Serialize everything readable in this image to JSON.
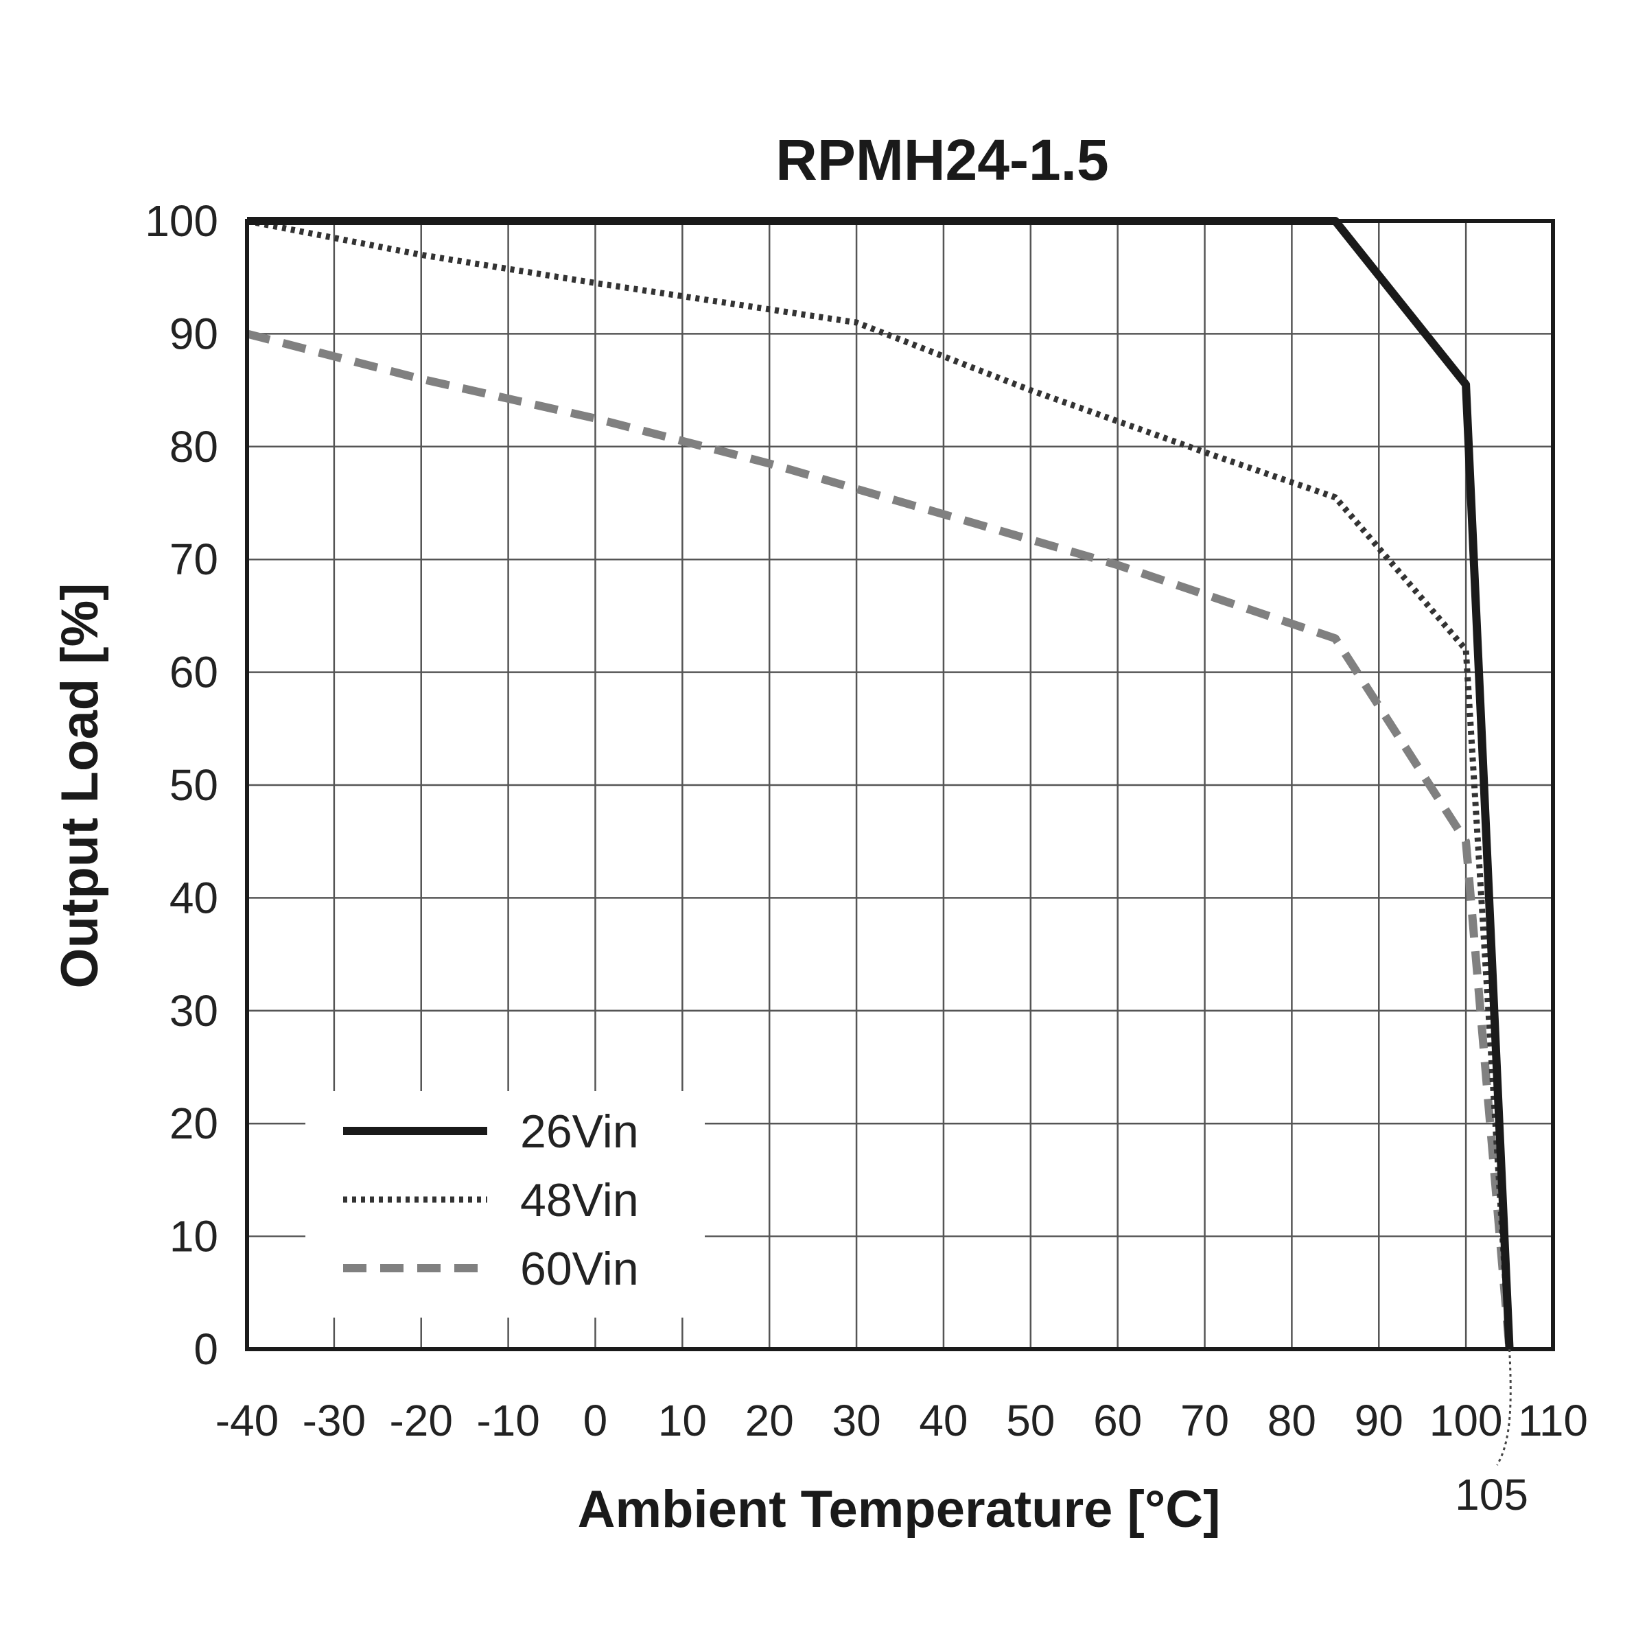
{
  "chart_data": {
    "type": "line",
    "title": "RPMH24-1.5",
    "xlabel": "Ambient Temperature [°C]",
    "ylabel": "Output Load [%]",
    "xlim": [
      -40,
      110
    ],
    "ylim": [
      0,
      100
    ],
    "x_ticks": [
      -40,
      -30,
      -20,
      -10,
      0,
      10,
      20,
      30,
      40,
      50,
      60,
      70,
      80,
      90,
      100,
      110
    ],
    "y_ticks": [
      0,
      10,
      20,
      30,
      40,
      50,
      60,
      70,
      80,
      90,
      100
    ],
    "grid": true,
    "legend_position": "bottom-left",
    "series": [
      {
        "name": "26Vin",
        "style": "solid",
        "color": "#1a1a1a",
        "points": [
          [
            -40,
            100
          ],
          [
            85,
            100
          ],
          [
            100,
            85.5
          ],
          [
            105,
            0
          ]
        ]
      },
      {
        "name": "48Vin",
        "style": "dotted",
        "color": "#333333",
        "points": [
          [
            -40,
            100
          ],
          [
            -20,
            97
          ],
          [
            0,
            94.5
          ],
          [
            30,
            91
          ],
          [
            50,
            85
          ],
          [
            70,
            79.5
          ],
          [
            85,
            75.5
          ],
          [
            100,
            62
          ],
          [
            105,
            0
          ]
        ]
      },
      {
        "name": "60Vin",
        "style": "dashed",
        "color": "#808080",
        "points": [
          [
            -40,
            90
          ],
          [
            -20,
            86
          ],
          [
            0,
            82.5
          ],
          [
            20,
            78.5
          ],
          [
            40,
            74
          ],
          [
            60,
            69.5
          ],
          [
            85,
            63
          ],
          [
            90,
            57
          ],
          [
            100,
            45
          ],
          [
            105,
            0
          ]
        ]
      }
    ],
    "annotations": [
      {
        "text": "105",
        "x": 105
      }
    ]
  }
}
